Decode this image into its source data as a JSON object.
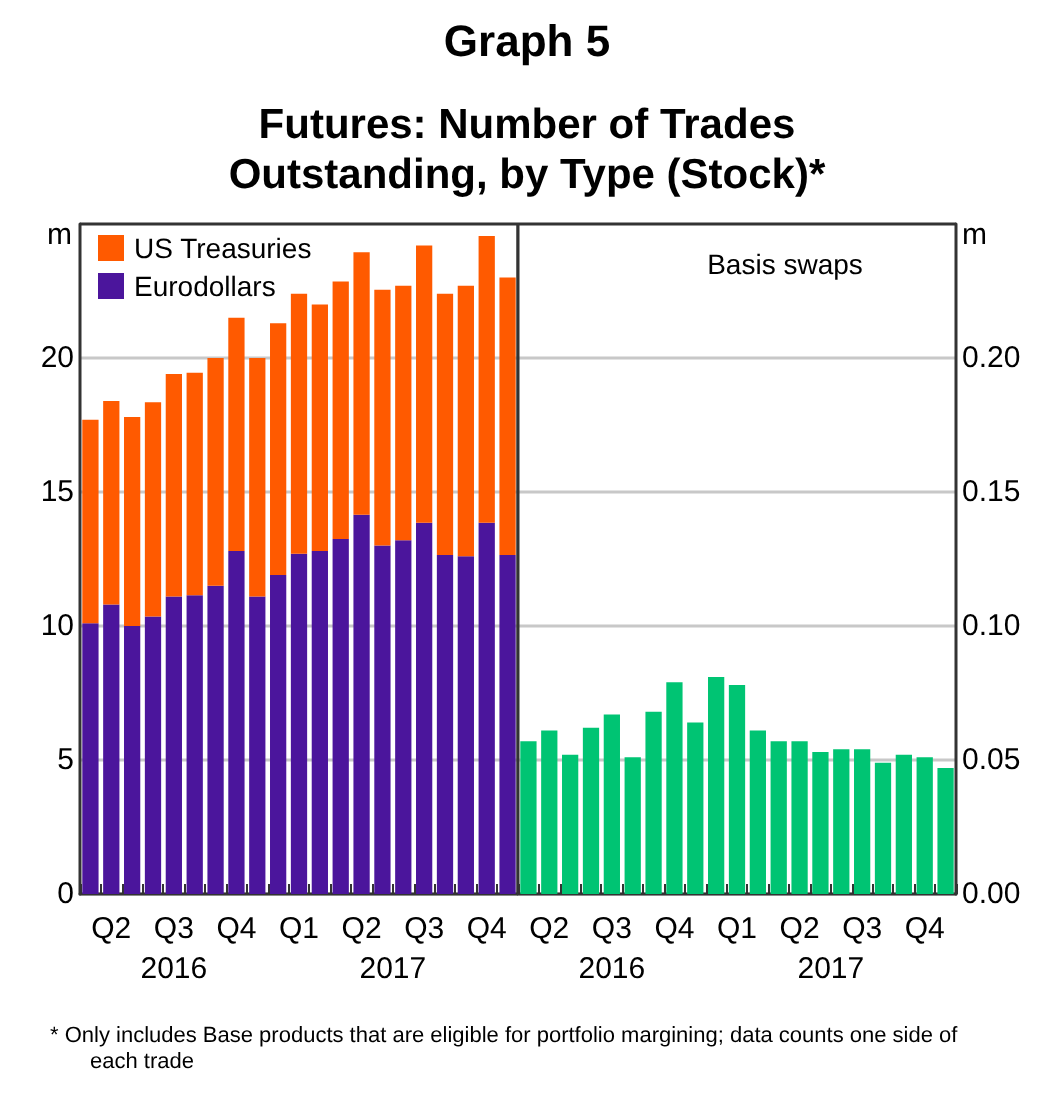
{
  "chart_data": [
    {
      "type": "bar",
      "title": "Graph 5",
      "subtitle": "Futures: Number of Trades Outstanding, by Type (Stock)*",
      "ylabel": "m",
      "stacked": true,
      "grid": "y",
      "legend": "top left",
      "categories": [
        null,
        "Q2",
        null,
        null,
        "Q3",
        null,
        null,
        "Q4",
        null,
        null,
        "Q1",
        null,
        null,
        "Q2",
        null,
        null,
        "Q3",
        null,
        null,
        "Q4",
        null
      ],
      "series": [
        {
          "name": "Eurodollars",
          "color": "#4b159c",
          "values": [
            10.1,
            10.8,
            10.0,
            10.35,
            11.1,
            11.15,
            11.5,
            12.8,
            11.1,
            11.9,
            12.7,
            12.8,
            13.25,
            14.15,
            13.0,
            13.2,
            13.85,
            12.65,
            12.6,
            13.85,
            12.65
          ]
        },
        {
          "name": "US Treasuries",
          "color": "#ff5a00",
          "values": [
            7.6,
            7.6,
            7.8,
            8.0,
            8.3,
            8.3,
            8.5,
            8.7,
            8.9,
            9.4,
            9.7,
            9.2,
            9.6,
            9.8,
            9.55,
            9.5,
            10.35,
            9.75,
            10.1,
            10.7,
            10.35
          ]
        }
      ],
      "ylim": [
        0,
        25
      ],
      "yticks": [
        0,
        5,
        10,
        15,
        20
      ],
      "annotations": [
        "2016",
        "2017",
        "*  Only includes Base products that are eligible for portfolio margining; data counts one side of each trade"
      ]
    },
    {
      "type": "bar",
      "title": "Basis swaps",
      "ylabel": "m",
      "grid": "y",
      "categories": [
        null,
        "Q2",
        null,
        null,
        "Q3",
        null,
        null,
        "Q4",
        null,
        null,
        "Q1",
        null,
        null,
        "Q2",
        null,
        null,
        "Q3",
        null,
        null,
        "Q4",
        null
      ],
      "series": [
        {
          "color": "#00c473",
          "values": [
            0.057,
            0.061,
            0.052,
            0.062,
            0.067,
            0.051,
            0.068,
            0.079,
            0.064,
            0.081,
            0.078,
            0.061,
            0.057,
            0.057,
            0.053,
            0.054,
            0.054,
            0.049,
            0.052,
            0.051,
            0.047
          ]
        }
      ],
      "ylim": [
        0,
        0.25
      ],
      "yticks": [
        {
          "value": 0,
          "label": "0.00"
        },
        {
          "value": 0.05,
          "label": "0.05"
        },
        {
          "value": 0.1,
          "label": "0.10"
        },
        {
          "value": 0.15,
          "label": "0.15"
        },
        {
          "value": 0.2,
          "label": "0.20"
        }
      ],
      "annotations": [
        "2016",
        "2017"
      ]
    }
  ]
}
